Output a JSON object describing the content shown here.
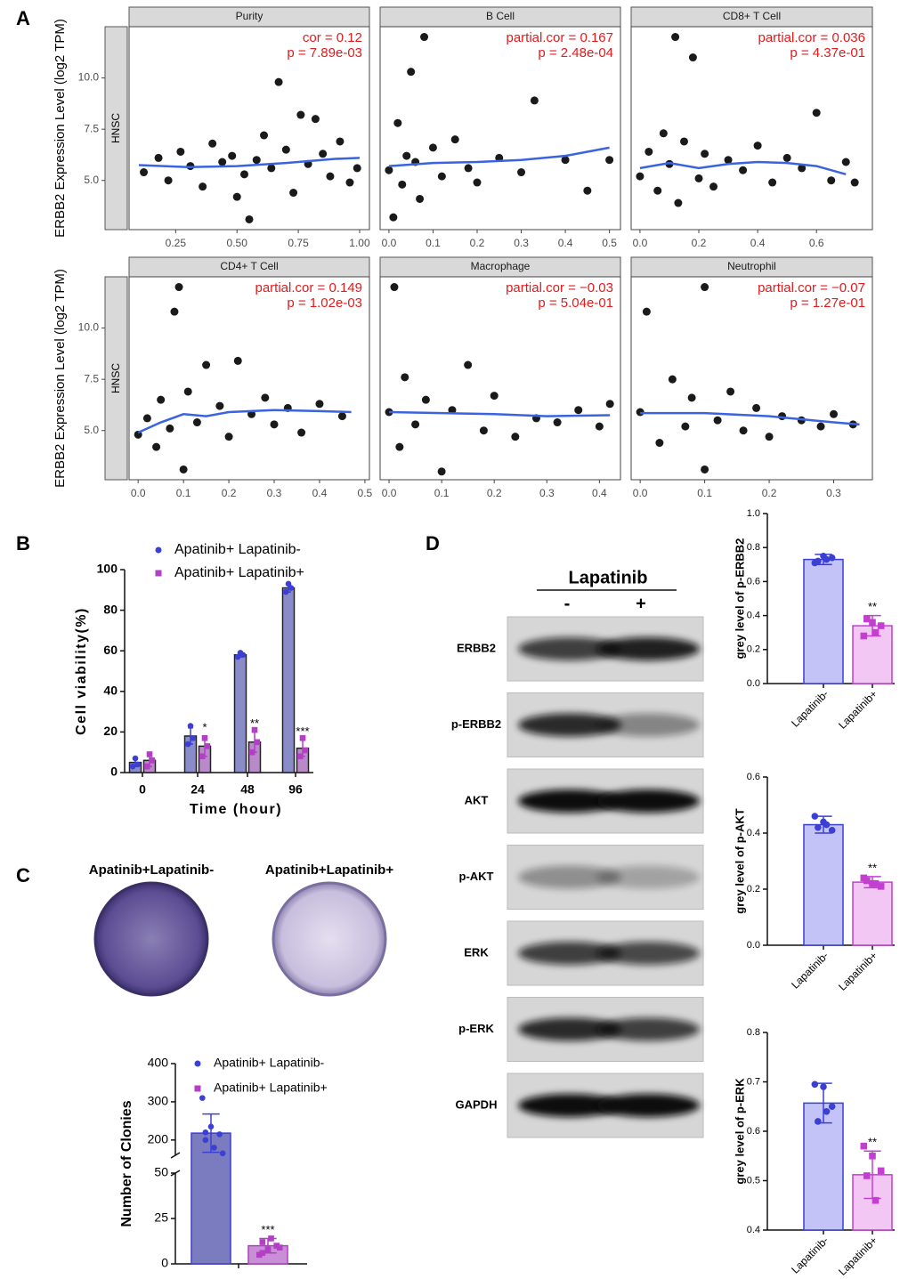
{
  "panels": [
    "A",
    "B",
    "C",
    "D"
  ],
  "plates": [
    "Apatinib+Lapatinib-",
    "Apatinib+Lapatinib+"
  ],
  "blot": {
    "title": "Lapatinib",
    "lanes": [
      "-",
      "+"
    ],
    "proteins": [
      "ERBB2",
      "p-ERBB2",
      "AKT",
      "p-AKT",
      "ERK",
      "p-ERK",
      "GAPDH"
    ]
  },
  "chart_data": [
    {
      "type": "scatter",
      "title": "Purity",
      "ylabel": "ERBB2 Expression Level (log2 TPM)",
      "strip": "HNSC",
      "xlim": [
        0.06,
        1.04
      ],
      "ylim": [
        2.6,
        12.5
      ],
      "xticks": [
        0.25,
        {
          "value": 0.5,
          "label": "0.50"
        },
        0.75,
        {
          "value": 1,
          "label": "1.00"
        }
      ],
      "yticks": [
        {
          "value": 5,
          "label": "5.0"
        },
        7.5,
        {
          "value": 10,
          "label": "10.0"
        }
      ],
      "color": "#1a1a1a",
      "x": [
        0.12,
        0.18,
        0.22,
        0.27,
        0.31,
        0.36,
        0.4,
        0.44,
        0.48,
        0.5,
        0.53,
        0.55,
        0.58,
        0.61,
        0.64,
        0.67,
        0.7,
        0.73,
        0.76,
        0.79,
        0.82,
        0.85,
        0.88,
        0.92,
        0.96,
        0.99
      ],
      "values": [
        5.4,
        6.1,
        5.0,
        6.4,
        5.7,
        4.7,
        6.8,
        5.9,
        6.2,
        4.2,
        5.3,
        3.1,
        6.0,
        7.2,
        5.6,
        9.8,
        6.5,
        4.4,
        8.2,
        5.8,
        8.0,
        6.3,
        5.2,
        6.9,
        4.9,
        5.6
      ],
      "fit": {
        "color": "#3a63e0",
        "x": [
          0.1,
          0.3,
          0.5,
          0.7,
          0.9,
          1.0
        ],
        "values": [
          5.75,
          5.65,
          5.7,
          5.85,
          6.05,
          6.1
        ]
      },
      "annotations": [
        "cor = 0.12",
        "p = 7.89e-03"
      ],
      "annotation_color": "#e41a1c"
    },
    {
      "type": "scatter",
      "title": "B Cell",
      "xlim": [
        -0.02,
        0.525
      ],
      "ylim": [
        2.6,
        12.5
      ],
      "xticks": [
        {
          "value": 0,
          "label": "0.0"
        },
        0.1,
        0.2,
        0.3,
        0.4,
        0.5
      ],
      "color": "#1a1a1a",
      "x": [
        0.0,
        0.01,
        0.02,
        0.03,
        0.04,
        0.05,
        0.06,
        0.07,
        0.08,
        0.1,
        0.12,
        0.15,
        0.18,
        0.2,
        0.25,
        0.3,
        0.33,
        0.4,
        0.45,
        0.5
      ],
      "values": [
        5.5,
        3.2,
        7.8,
        4.8,
        6.2,
        10.3,
        5.9,
        4.1,
        12.0,
        6.6,
        5.2,
        7.0,
        5.6,
        4.9,
        6.1,
        5.4,
        8.9,
        6.0,
        4.5,
        6.0
      ],
      "fit": {
        "color": "#3a63e0",
        "x": [
          0.0,
          0.1,
          0.2,
          0.3,
          0.4,
          0.5
        ],
        "values": [
          5.7,
          5.85,
          5.9,
          6.0,
          6.2,
          6.6
        ]
      },
      "annotations": [
        "partial.cor = 0.167",
        "p = 2.48e-04"
      ],
      "annotation_color": "#e41a1c"
    },
    {
      "type": "scatter",
      "title": "CD8+ T Cell",
      "xlim": [
        -0.03,
        0.79
      ],
      "ylim": [
        2.6,
        12.5
      ],
      "xticks": [
        {
          "value": 0,
          "label": "0.0"
        },
        0.2,
        0.4,
        0.6
      ],
      "color": "#1a1a1a",
      "x": [
        0.0,
        0.03,
        0.06,
        0.08,
        0.1,
        0.12,
        0.13,
        0.15,
        0.18,
        0.2,
        0.22,
        0.25,
        0.3,
        0.35,
        0.4,
        0.45,
        0.5,
        0.55,
        0.6,
        0.65,
        0.7,
        0.73
      ],
      "values": [
        5.2,
        6.4,
        4.5,
        7.3,
        5.8,
        12.0,
        3.9,
        6.9,
        11.0,
        5.1,
        6.3,
        4.7,
        6.0,
        5.5,
        6.7,
        4.9,
        6.1,
        5.6,
        8.3,
        5.0,
        5.9,
        4.9
      ],
      "fit": {
        "color": "#3a63e0",
        "x": [
          0.0,
          0.1,
          0.2,
          0.3,
          0.4,
          0.5,
          0.6,
          0.7
        ],
        "values": [
          5.6,
          5.85,
          5.6,
          5.8,
          5.9,
          5.85,
          5.7,
          5.3
        ]
      },
      "annotations": [
        "partial.cor = 0.036",
        "p = 4.37e-01"
      ],
      "annotation_color": "#e41a1c"
    },
    {
      "type": "scatter",
      "title": "CD4+ T Cell",
      "ylabel": "ERBB2 Expression Level (log2 TPM)",
      "strip": "HNSC",
      "xlim": [
        -0.02,
        0.51
      ],
      "ylim": [
        2.6,
        12.5
      ],
      "xticks": [
        {
          "value": 0,
          "label": "0.0"
        },
        0.1,
        0.2,
        0.3,
        0.4,
        0.5
      ],
      "yticks": [
        {
          "value": 5,
          "label": "5.0"
        },
        7.5,
        {
          "value": 10,
          "label": "10.0"
        }
      ],
      "color": "#1a1a1a",
      "x": [
        0.0,
        0.02,
        0.04,
        0.05,
        0.07,
        0.08,
        0.09,
        0.1,
        0.11,
        0.13,
        0.15,
        0.18,
        0.2,
        0.22,
        0.25,
        0.28,
        0.3,
        0.33,
        0.36,
        0.4,
        0.45
      ],
      "values": [
        4.8,
        5.6,
        4.2,
        6.5,
        5.1,
        10.8,
        12.0,
        3.1,
        6.9,
        5.4,
        8.2,
        6.2,
        4.7,
        8.4,
        5.8,
        6.6,
        5.3,
        6.1,
        4.9,
        6.3,
        5.7
      ],
      "fit": {
        "color": "#3a63e0",
        "x": [
          0.0,
          0.05,
          0.1,
          0.15,
          0.2,
          0.3,
          0.4,
          0.47
        ],
        "values": [
          4.9,
          5.4,
          5.8,
          5.7,
          5.9,
          6.0,
          5.95,
          5.9
        ]
      },
      "annotations": [
        "partial.cor = 0.149",
        "p = 1.02e-03"
      ],
      "annotation_color": "#e41a1c"
    },
    {
      "type": "scatter",
      "title": "Macrophage",
      "xlim": [
        -0.017,
        0.44
      ],
      "ylim": [
        2.6,
        12.5
      ],
      "xticks": [
        {
          "value": 0,
          "label": "0.0"
        },
        0.1,
        0.2,
        0.3,
        0.4
      ],
      "color": "#1a1a1a",
      "x": [
        0.0,
        0.01,
        0.02,
        0.03,
        0.05,
        0.07,
        0.1,
        0.12,
        0.15,
        0.18,
        0.2,
        0.24,
        0.28,
        0.32,
        0.36,
        0.4,
        0.42
      ],
      "values": [
        5.9,
        12.0,
        4.2,
        7.6,
        5.3,
        6.5,
        3.0,
        6.0,
        8.2,
        5.0,
        6.7,
        4.7,
        5.6,
        5.4,
        6.0,
        5.2,
        6.3
      ],
      "fit": {
        "color": "#3a63e0",
        "x": [
          0.0,
          0.1,
          0.2,
          0.3,
          0.42
        ],
        "values": [
          5.9,
          5.85,
          5.8,
          5.7,
          5.75
        ]
      },
      "annotations": [
        "partial.cor = −0.03",
        "p = 5.04e-01"
      ],
      "annotation_color": "#e41a1c"
    },
    {
      "type": "scatter",
      "title": "Neutrophil",
      "xlim": [
        -0.014,
        0.36
      ],
      "ylim": [
        2.6,
        12.5
      ],
      "xticks": [
        {
          "value": 0,
          "label": "0.0"
        },
        0.1,
        0.2,
        0.3
      ],
      "color": "#1a1a1a",
      "x": [
        0.0,
        0.01,
        0.03,
        0.05,
        0.07,
        0.08,
        0.1,
        0.1,
        0.12,
        0.14,
        0.16,
        0.18,
        0.2,
        0.22,
        0.25,
        0.28,
        0.3,
        0.33
      ],
      "values": [
        5.9,
        10.8,
        4.4,
        7.5,
        5.2,
        6.6,
        3.1,
        12.0,
        5.5,
        6.9,
        5.0,
        6.1,
        4.7,
        5.7,
        5.5,
        5.2,
        5.8,
        5.3
      ],
      "fit": {
        "color": "#3a63e0",
        "x": [
          0.0,
          0.1,
          0.2,
          0.3,
          0.34
        ],
        "values": [
          5.85,
          5.85,
          5.7,
          5.4,
          5.3
        ]
      },
      "annotations": [
        "partial.cor = −0.07",
        "p = 1.27e-01"
      ],
      "annotation_color": "#e41a1c"
    },
    {
      "type": "bar",
      "ylabel": "Cell viability(%)",
      "xlabel": "Time (hour)",
      "categories": [
        "0",
        "24",
        "48",
        "96"
      ],
      "ylim": [
        0,
        100
      ],
      "yticks": [
        0,
        20,
        40,
        60,
        80,
        100
      ],
      "series": [
        {
          "name": "Apatinib+ Lapatinib-",
          "color": "#3b3fd4",
          "fill": "#8a8cc9",
          "marker": "circle",
          "values": [
            5,
            18,
            58,
            91
          ],
          "errors": [
            2,
            4,
            1,
            2
          ],
          "points": [
            [
              3,
              7,
              4
            ],
            [
              14,
              23,
              17
            ],
            [
              57,
              59,
              58
            ],
            [
              89,
              93,
              91
            ]
          ]
        },
        {
          "name": "Apatinib+ Lapatinib+",
          "color": "#b23fc4",
          "fill": "#b98ac9",
          "marker": "square",
          "values": [
            6,
            13,
            15,
            12
          ],
          "errors": [
            3,
            5,
            5,
            4
          ],
          "points": [
            [
              3,
              9,
              6
            ],
            [
              8,
              17,
              13
            ],
            [
              10,
              21,
              15
            ],
            [
              8,
              17,
              11
            ]
          ],
          "annotations": [
            null,
            "*",
            "**",
            "***"
          ]
        }
      ]
    },
    {
      "type": "bar",
      "ylabel": "Number of Clonies",
      "categories": [
        null
      ],
      "ylim": [
        0,
        400
      ],
      "ybreak": [
        50,
        160
      ],
      "yticks": [
        0,
        25,
        50,
        200,
        300,
        400
      ],
      "series": [
        {
          "name": "Apatinib+ Lapatinib-",
          "color": "#3b3fd4",
          "fill": "#7b7bbf",
          "marker": "circle",
          "values": [
            218
          ],
          "errors": [
            50
          ],
          "points": [
            [
              310,
              235,
              215,
              200,
              180,
              165,
              220
            ]
          ]
        },
        {
          "name": "Apatinib+ Lapatinib+",
          "color": "#b23fc4",
          "fill": "#c98fd6",
          "marker": "square",
          "values": [
            10
          ],
          "errors": [
            4
          ],
          "points": [
            [
              5,
              8,
              10,
              12,
              14,
              9,
              6
            ]
          ],
          "annotations": [
            "***"
          ]
        }
      ]
    },
    {
      "type": "bar",
      "ylabel": "grey level of p-ERBB2",
      "categories": [
        "Lapatinib-",
        "Lapatinib+"
      ],
      "ylim": [
        0,
        1
      ],
      "yticks": [
        {
          "value": 0,
          "label": "0.0"
        },
        0.2,
        0.4,
        0.6,
        0.8,
        {
          "value": 1,
          "label": "1.0"
        }
      ],
      "values": [
        0.73,
        0.34
      ],
      "errors": [
        0.03,
        0.06
      ],
      "points": [
        [
          0.71,
          0.75,
          0.74,
          0.72,
          0.73
        ],
        [
          0.28,
          0.36,
          0.34,
          0.38,
          0.3
        ]
      ],
      "colors": [
        "#3b3fd4",
        "#c23fd0"
      ],
      "fills": [
        "#c3c3f7",
        "#f3c7f3"
      ],
      "markers": [
        "circle",
        "square"
      ],
      "annotations": [
        null,
        "**"
      ]
    },
    {
      "type": "bar",
      "ylabel": "grey level of p-AKT",
      "categories": [
        "Lapatinib-",
        "Lapatinib+"
      ],
      "ylim": [
        0,
        0.6
      ],
      "yticks": [
        {
          "value": 0,
          "label": "0.0"
        },
        0.2,
        0.4,
        0.6
      ],
      "values": [
        0.43,
        0.225
      ],
      "errors": [
        0.03,
        0.02
      ],
      "points": [
        [
          0.46,
          0.44,
          0.41,
          0.42,
          0.43
        ],
        [
          0.24,
          0.22,
          0.21,
          0.23,
          0.22
        ]
      ],
      "colors": [
        "#3b3fd4",
        "#c23fd0"
      ],
      "fills": [
        "#c3c3f7",
        "#f3c7f3"
      ],
      "markers": [
        "circle",
        "square"
      ],
      "annotations": [
        null,
        "**"
      ]
    },
    {
      "type": "bar",
      "ylabel": "grey level of p-ERK",
      "categories": [
        "Lapatinib-",
        "Lapatinib+"
      ],
      "ylim": [
        0.4,
        0.8
      ],
      "yticks": [
        0.4,
        0.5,
        0.6,
        0.7,
        0.8
      ],
      "values": [
        0.657,
        0.512
      ],
      "errors": [
        0.04,
        0.048
      ],
      "points": [
        [
          0.695,
          0.69,
          0.65,
          0.62,
          0.64
        ],
        [
          0.57,
          0.55,
          0.52,
          0.51,
          0.46
        ]
      ],
      "colors": [
        "#3b3fd4",
        "#c23fd0"
      ],
      "fills": [
        "#c3c3f7",
        "#f3c7f3"
      ],
      "markers": [
        "circle",
        "square"
      ],
      "annotations": [
        null,
        "**"
      ]
    }
  ]
}
